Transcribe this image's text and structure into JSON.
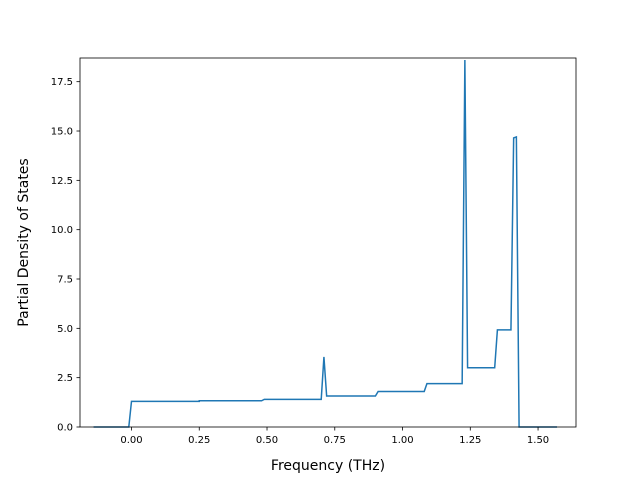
{
  "chart_data": {
    "type": "line",
    "title": "",
    "xlabel": "Frequency (THz)",
    "ylabel": "Partial Density of States",
    "xlim": [
      -0.19,
      1.64
    ],
    "ylim": [
      0.0,
      18.7
    ],
    "xticks": [
      {
        "value": 0.0,
        "label": "0.00"
      },
      {
        "value": 0.25,
        "label": "0.25"
      },
      {
        "value": 0.5,
        "label": "0.50"
      },
      {
        "value": 0.75,
        "label": "0.75"
      },
      {
        "value": 1.0,
        "label": "1.00"
      },
      {
        "value": 1.25,
        "label": "1.25"
      },
      {
        "value": 1.5,
        "label": "1.50"
      }
    ],
    "yticks": [
      {
        "value": 0.0,
        "label": "0.0"
      },
      {
        "value": 2.5,
        "label": "2.5"
      },
      {
        "value": 5.0,
        "label": "5.0"
      },
      {
        "value": 7.5,
        "label": "7.5"
      },
      {
        "value": 10.0,
        "label": "10.0"
      },
      {
        "value": 12.5,
        "label": "12.5"
      },
      {
        "value": 15.0,
        "label": "15.0"
      },
      {
        "value": 17.5,
        "label": "17.5"
      }
    ],
    "grid": false,
    "line_color": "#1f77b4",
    "series": [
      {
        "x": [
          -0.14,
          -0.01,
          0.0,
          0.25,
          0.25,
          0.48,
          0.49,
          0.7,
          0.71,
          0.72,
          0.9,
          0.91,
          1.08,
          1.09,
          1.22,
          1.23,
          1.24,
          1.34,
          1.35,
          1.4,
          1.41,
          1.42,
          1.43,
          1.57
        ],
        "y": [
          0.0,
          0.0,
          1.3,
          1.3,
          1.33,
          1.33,
          1.4,
          1.4,
          3.55,
          1.57,
          1.57,
          1.8,
          1.8,
          2.2,
          2.2,
          18.6,
          3.0,
          3.0,
          4.92,
          4.92,
          14.65,
          14.7,
          0.0,
          0.0
        ]
      }
    ]
  }
}
